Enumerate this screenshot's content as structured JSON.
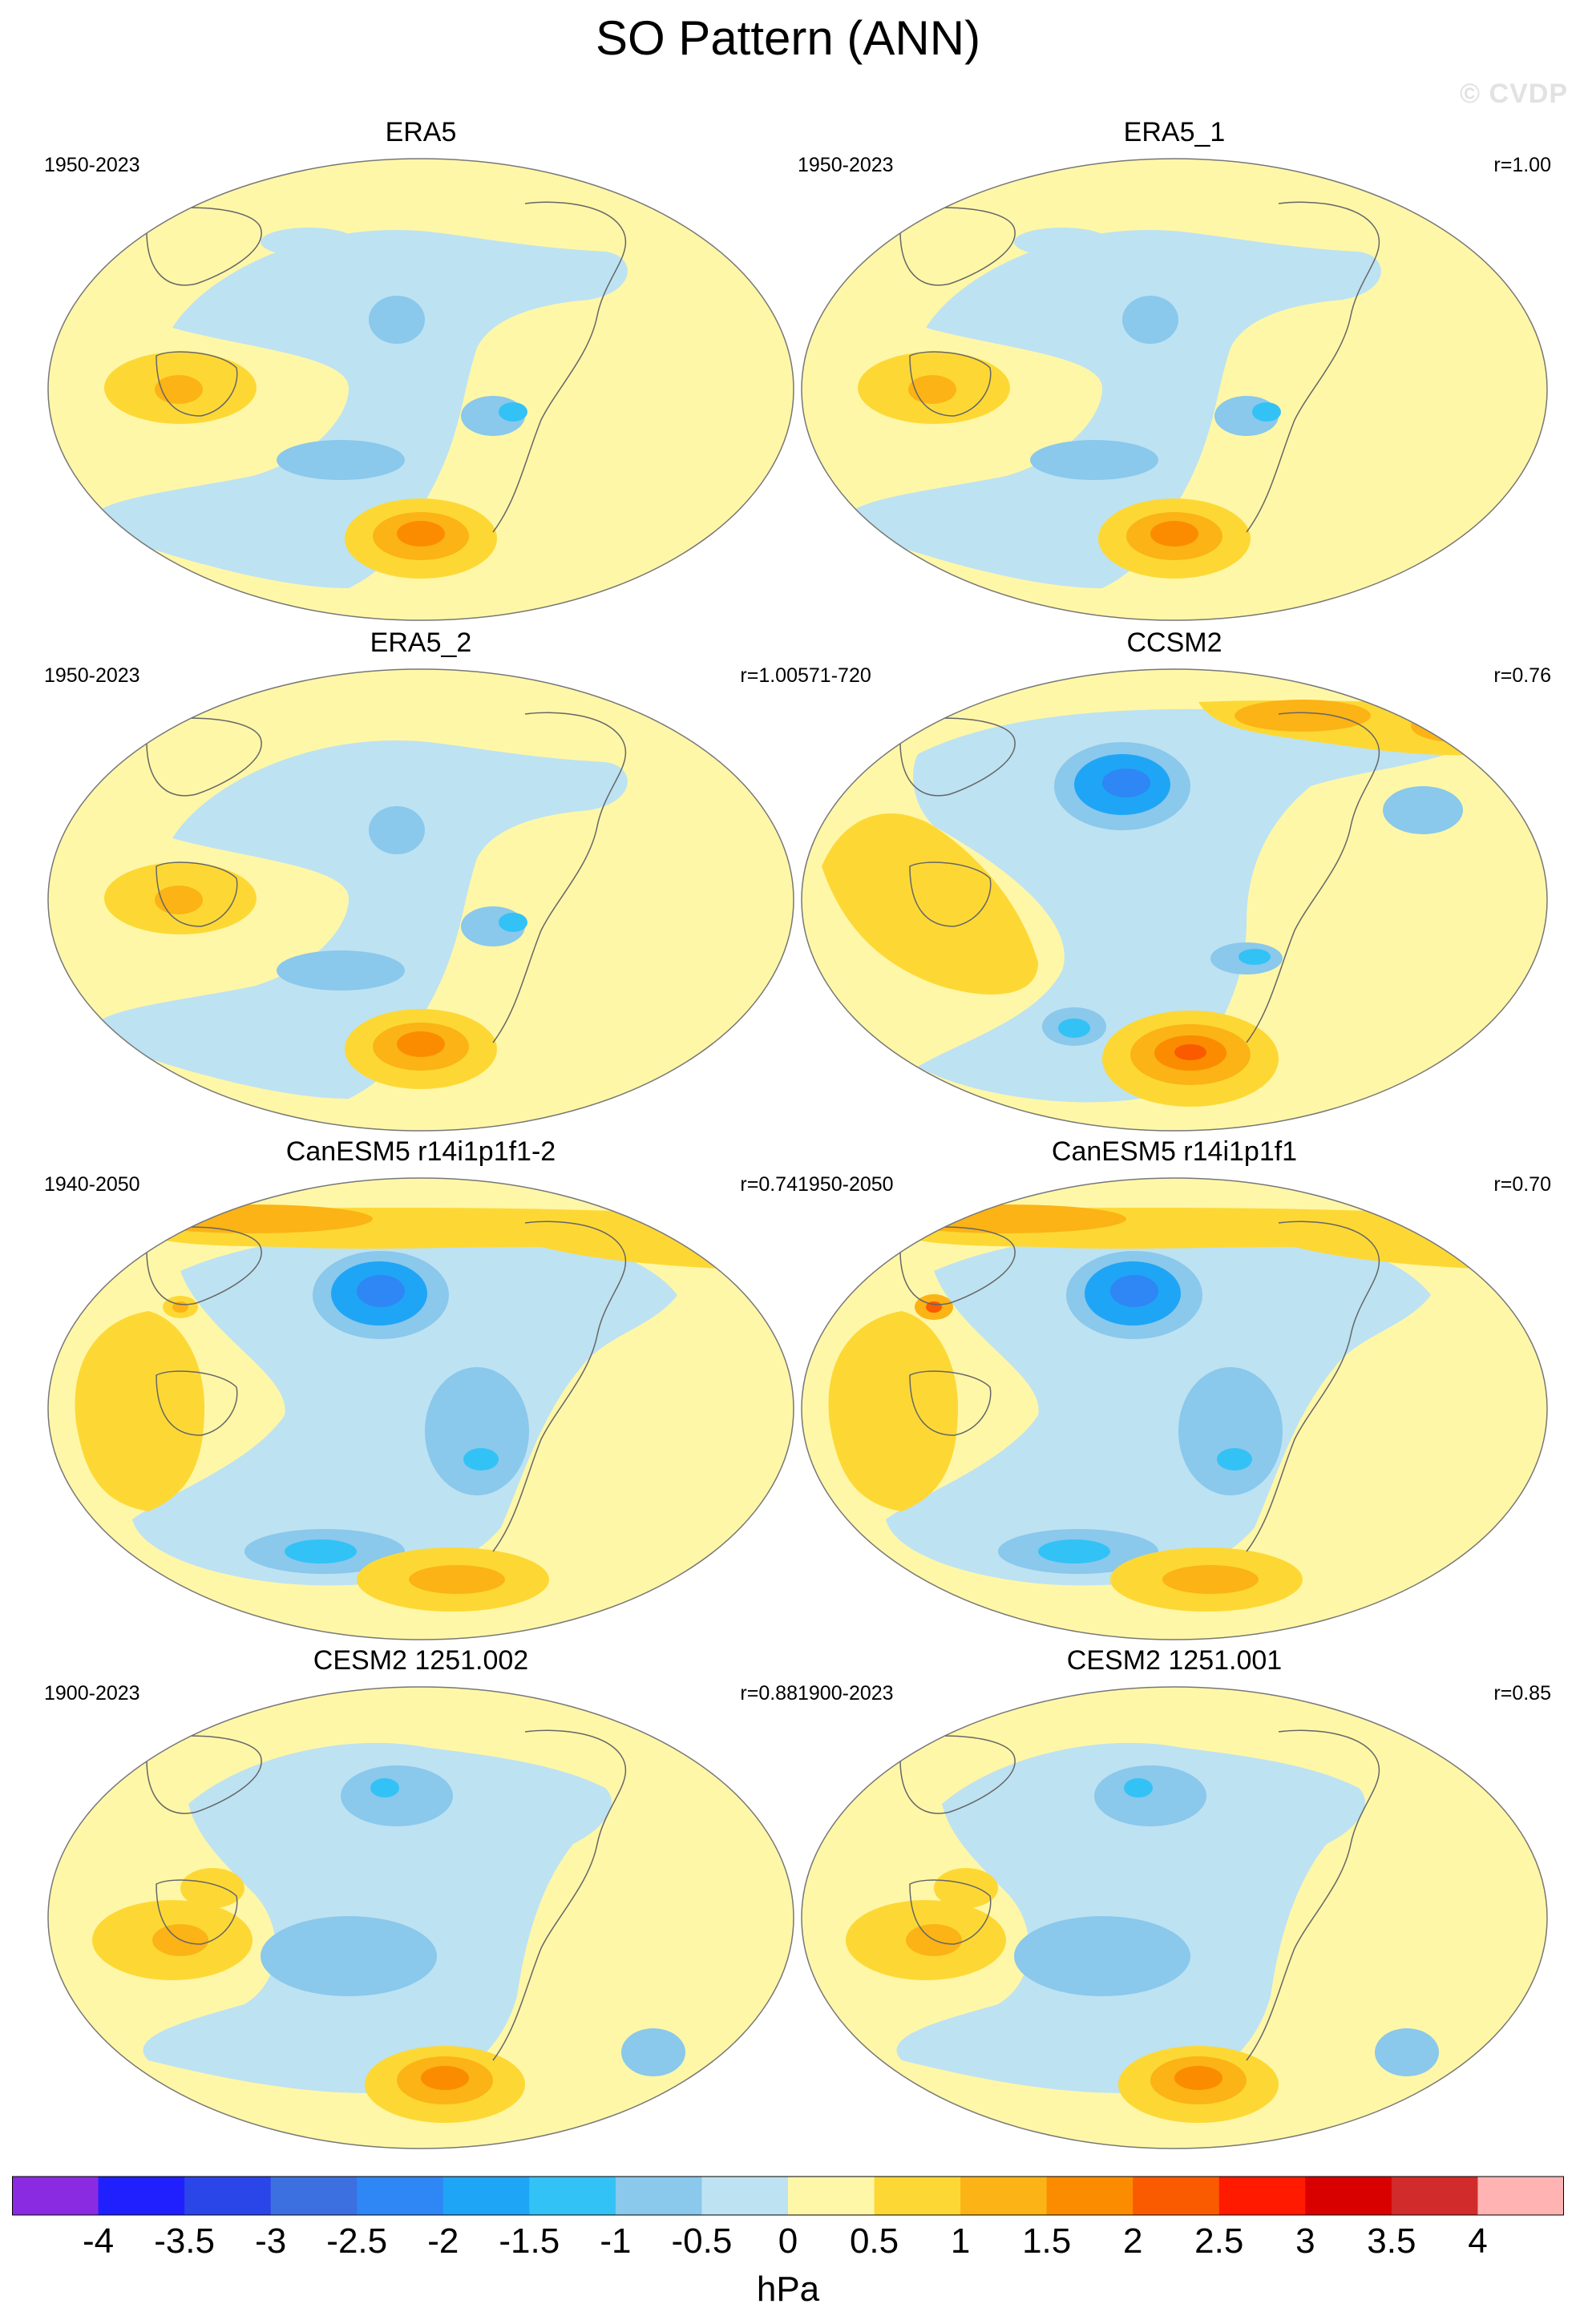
{
  "title": "SO Pattern (ANN)",
  "watermark": "© CVDP",
  "panels": [
    {
      "title": "ERA5",
      "years": "1950-2023",
      "r": ""
    },
    {
      "title": "ERA5_1",
      "years": "1950-2023",
      "r": "r=1.00"
    },
    {
      "title": "ERA5_2",
      "years": "1950-2023",
      "r": "r=1.00"
    },
    {
      "title": "CCSM2",
      "years": "571-720",
      "r": "r=0.76"
    },
    {
      "title": "CanESM5 r14i1p1f1-2",
      "years": "1940-2050",
      "r": "r=0.74"
    },
    {
      "title": "CanESM5 r14i1p1f1",
      "years": "1950-2050",
      "r": "r=0.70"
    },
    {
      "title": "CESM2 1251.002",
      "years": "1900-2023",
      "r": "r=0.88"
    },
    {
      "title": "CESM2 1251.001",
      "years": "1900-2023",
      "r": "r=0.85"
    }
  ],
  "colorbar": {
    "unit": "hPa",
    "ticks": [
      "-4",
      "-3.5",
      "-3",
      "-2.5",
      "-2",
      "-1.5",
      "-1",
      "-0.5",
      "0",
      "0.5",
      "1",
      "1.5",
      "2",
      "2.5",
      "3",
      "3.5",
      "4"
    ],
    "colors": [
      "#8a2be2",
      "#2020ff",
      "#2a45e8",
      "#3c6fe0",
      "#2f86f5",
      "#1fa5f5",
      "#33c2f5",
      "#8ac8ec",
      "#bde2f2",
      "#fff7a8",
      "#fdd835",
      "#fbb315",
      "#fb8c00",
      "#fa5a00",
      "#ff1a00",
      "#d90000",
      "#d22b2b",
      "#ffb3b3"
    ]
  },
  "palette": {
    "neg_0_5": "#bde2f2",
    "neg_1_0": "#8ac8ec",
    "neg_1_5": "#33c2f5",
    "neg_2_0": "#1fa5f5",
    "neg_2_5": "#2f86f5",
    "pos_0_5": "#fff7a8",
    "pos_1_0": "#fdd835",
    "pos_1_5": "#fbb315",
    "pos_2_0": "#fb8c00",
    "pos_2_5": "#fa5a00"
  }
}
